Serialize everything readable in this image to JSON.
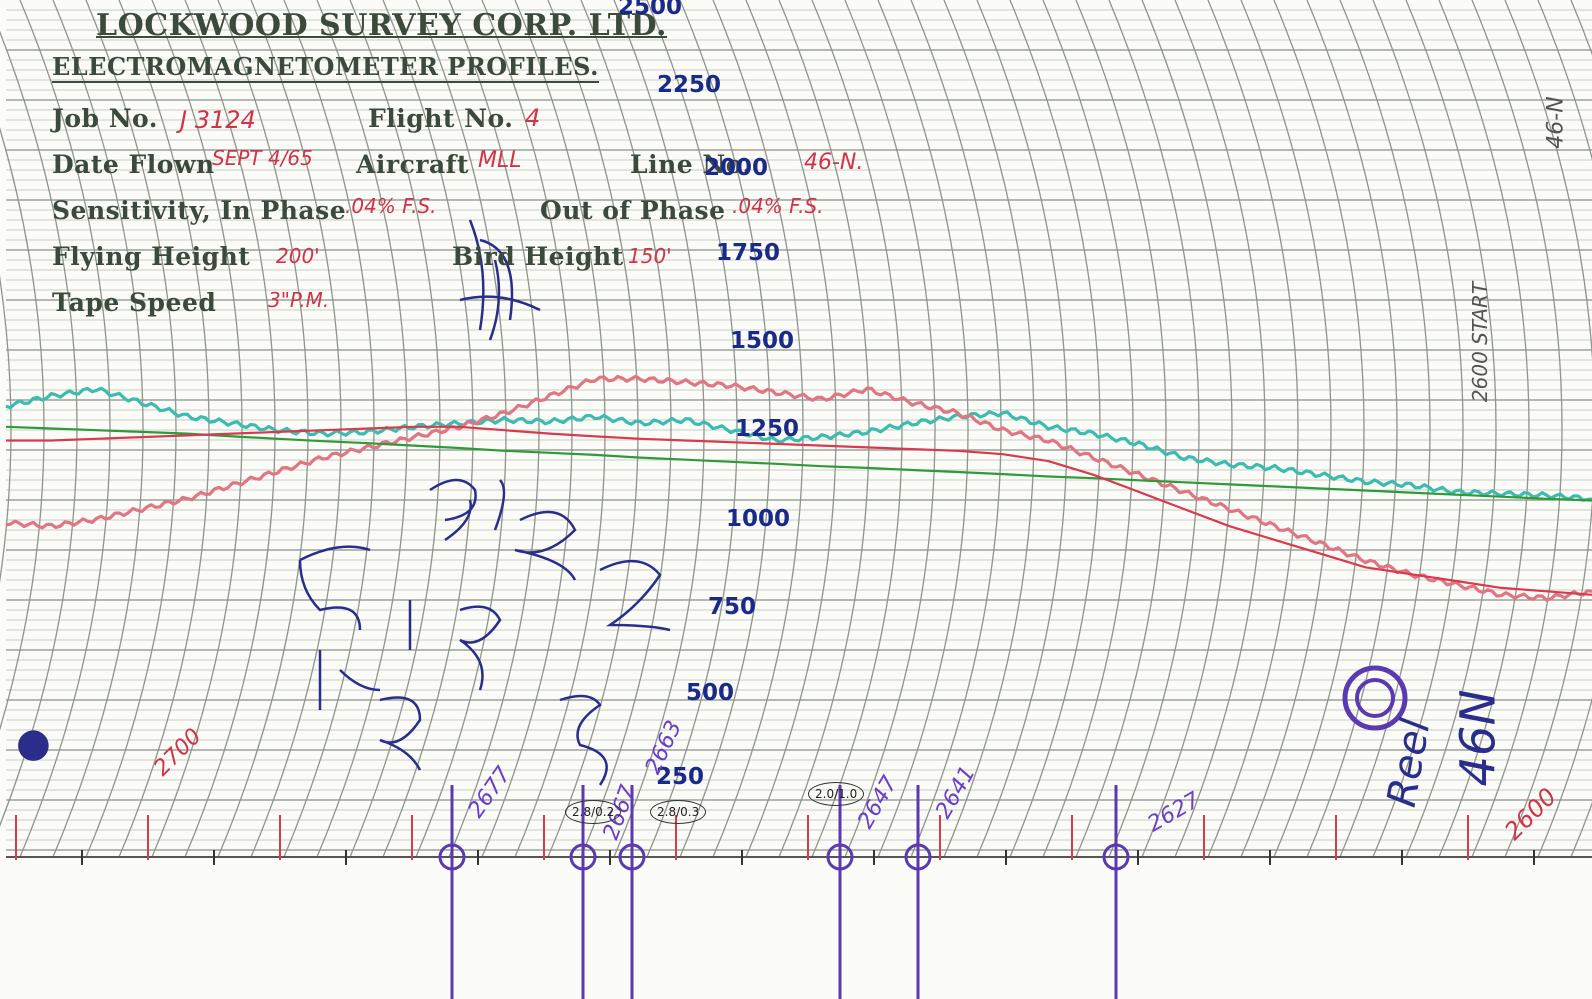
{
  "header": {
    "company": "LOCKWOOD SURVEY CORP. LTD.",
    "document_title": "ELECTROMAGNETOMETER PROFILES.",
    "job_label": "Job No.",
    "job_value": "J 3124",
    "flight_label": "Flight No.",
    "flight_value": "4",
    "date_label": "Date Flown",
    "date_value": "SEPT 4/65",
    "aircraft_label": "Aircraft",
    "aircraft_value": "MLL",
    "line_label": "Line No.",
    "line_value": "46-N.",
    "sensitivity_label": "Sensitivity, In Phase",
    "in_phase_value": ".04% F.S.",
    "out_phase_label": "Out of Phase",
    "out_phase_value": ".04% F.S.",
    "flying_height_label": "Flying Height",
    "flying_height_value": "200'",
    "bird_height_label": "Bird Height",
    "bird_height_value": "150'",
    "tape_speed_label": "Tape Speed",
    "tape_speed_value": "3\"P.M."
  },
  "scale_labels": [
    "2500",
    "2250",
    "2000",
    "1750",
    "1500",
    "1250",
    "1000",
    "750",
    "500",
    "250"
  ],
  "annotations": {
    "right_margin_line": "46-N",
    "right_margin_start": "2600 START",
    "fiducial_red_left": "2700",
    "fiducial_red_right": "2600",
    "fiducials_purple": [
      "2677",
      "2667",
      "2663",
      "2647",
      "2641",
      "2627"
    ],
    "circled_ratios": [
      "2.8/0.2",
      "2.8/0.3",
      "2.0/1.0"
    ],
    "handwritten_numbers": [
      "91",
      "422",
      "5155",
      "122"
    ],
    "handwritten_right": "46N",
    "handwritten_right_2": "Reel",
    "handwritten_mark": "ETH"
  },
  "chart_data": {
    "type": "line",
    "series": [
      {
        "color": "#3cbcae",
        "values": [
          1350,
          1380,
          1400,
          1360,
          1320,
          1300,
          1280,
          1270,
          1275,
          1290,
          1300,
          1310,
          1305,
          1320,
          1300,
          1310,
          1280,
          1250,
          1260,
          1275,
          1300,
          1320,
          1330,
          1290,
          1270,
          1240,
          1200,
          1180,
          1170,
          1150,
          1130,
          1120,
          1100,
          1095,
          1090,
          1080
        ]
      },
      {
        "color": "#e07684",
        "values": [
          1010,
          1000,
          1020,
          1050,
          1080,
          1120,
          1160,
          1200,
          1230,
          1260,
          1290,
          1330,
          1380,
          1430,
          1430,
          1420,
          1410,
          1390,
          1370,
          1400,
          1360,
          1330,
          1280,
          1250,
          1200,
          1150,
          1100,
          1050,
          1000,
          950,
          900,
          860,
          830,
          800,
          790,
          810
        ]
      },
      {
        "color": "#2e9a3a",
        "values": [
          1290,
          1285,
          1280,
          1275,
          1270,
          1262,
          1255,
          1248,
          1242,
          1235,
          1228,
          1220,
          1214,
          1208,
          1200,
          1194,
          1188,
          1182,
          1175,
          1170,
          1164,
          1158,
          1152,
          1145,
          1140,
          1134,
          1128,
          1122,
          1116,
          1110,
          1104,
          1098,
          1092,
          1086,
          1080,
          1075
        ]
      },
      {
        "color": "#d83a4e",
        "values": [
          1250,
          1250,
          1255,
          1260,
          1265,
          1270,
          1275,
          1280,
          1285,
          1290,
          1290,
          1280,
          1270,
          1262,
          1255,
          1250,
          1245,
          1240,
          1235,
          1230,
          1225,
          1220,
          1210,
          1190,
          1150,
          1100,
          1050,
          1000,
          960,
          920,
          880,
          860,
          840,
          820,
          810,
          800
        ]
      }
    ]
  }
}
